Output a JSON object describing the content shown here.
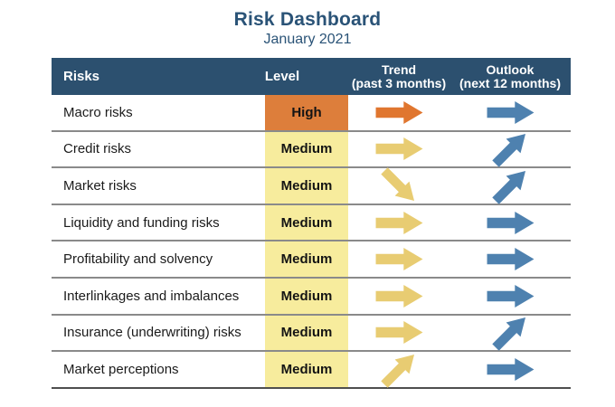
{
  "title": "Risk Dashboard",
  "subtitle": "January 2021",
  "colors": {
    "title_text": "#2A5377",
    "header_bg": "#2C506F",
    "header_text": "#FFFFFF",
    "high_bg": "#DD7E3B",
    "medium_bg": "#F7EC9D",
    "arrow_orange": "#E0762F",
    "arrow_yellow": "#E8CC72",
    "arrow_blue": "#4E81AF",
    "row_divider": "#8A8A8A",
    "table_bottom_border": "#4F4F4F"
  },
  "table": {
    "columns": [
      {
        "label": "Risks",
        "sublabel": ""
      },
      {
        "label": "Level",
        "sublabel": ""
      },
      {
        "label": "Trend",
        "sublabel": "(past 3 months)"
      },
      {
        "label": "Outlook",
        "sublabel": "(next 12 months)"
      }
    ],
    "rows": [
      {
        "risk": "Macro risks",
        "level": "High",
        "level_key": "high",
        "trend": {
          "direction": "right",
          "color": "orange"
        },
        "outlook": {
          "direction": "right",
          "color": "blue"
        }
      },
      {
        "risk": "Credit risks",
        "level": "Medium",
        "level_key": "medium",
        "trend": {
          "direction": "right",
          "color": "yellow"
        },
        "outlook": {
          "direction": "up-right",
          "color": "blue"
        }
      },
      {
        "risk": "Market risks",
        "level": "Medium",
        "level_key": "medium",
        "trend": {
          "direction": "down-right",
          "color": "yellow"
        },
        "outlook": {
          "direction": "up-right",
          "color": "blue"
        }
      },
      {
        "risk": "Liquidity and funding risks",
        "level": "Medium",
        "level_key": "medium",
        "trend": {
          "direction": "right",
          "color": "yellow"
        },
        "outlook": {
          "direction": "right",
          "color": "blue"
        }
      },
      {
        "risk": "Profitability and solvency",
        "level": "Medium",
        "level_key": "medium",
        "trend": {
          "direction": "right",
          "color": "yellow"
        },
        "outlook": {
          "direction": "right",
          "color": "blue"
        }
      },
      {
        "risk": "Interlinkages and imbalances",
        "level": "Medium",
        "level_key": "medium",
        "trend": {
          "direction": "right",
          "color": "yellow"
        },
        "outlook": {
          "direction": "right",
          "color": "blue"
        }
      },
      {
        "risk": "Insurance (underwriting) risks",
        "level": "Medium",
        "level_key": "medium",
        "trend": {
          "direction": "right",
          "color": "yellow"
        },
        "outlook": {
          "direction": "up-right",
          "color": "blue"
        }
      },
      {
        "risk": "Market perceptions",
        "level": "Medium",
        "level_key": "medium",
        "trend": {
          "direction": "up-right",
          "color": "yellow"
        },
        "outlook": {
          "direction": "right",
          "color": "blue"
        }
      }
    ]
  },
  "chart_data": {
    "type": "table",
    "title": "Risk Dashboard",
    "subtitle": "January 2021",
    "columns": [
      "Risks",
      "Level",
      "Trend (past 3 months)",
      "Outlook (next 12 months)"
    ],
    "rows": [
      [
        "Macro risks",
        "High",
        "stable",
        "stable"
      ],
      [
        "Credit risks",
        "Medium",
        "stable",
        "increasing"
      ],
      [
        "Market risks",
        "Medium",
        "decreasing",
        "increasing"
      ],
      [
        "Liquidity and funding risks",
        "Medium",
        "stable",
        "stable"
      ],
      [
        "Profitability and solvency",
        "Medium",
        "stable",
        "stable"
      ],
      [
        "Interlinkages and imbalances",
        "Medium",
        "stable",
        "stable"
      ],
      [
        "Insurance (underwriting) risks",
        "Medium",
        "stable",
        "increasing"
      ],
      [
        "Market perceptions",
        "Medium",
        "increasing",
        "stable"
      ]
    ],
    "legend_position": "none",
    "grid": "horizontal-only"
  }
}
